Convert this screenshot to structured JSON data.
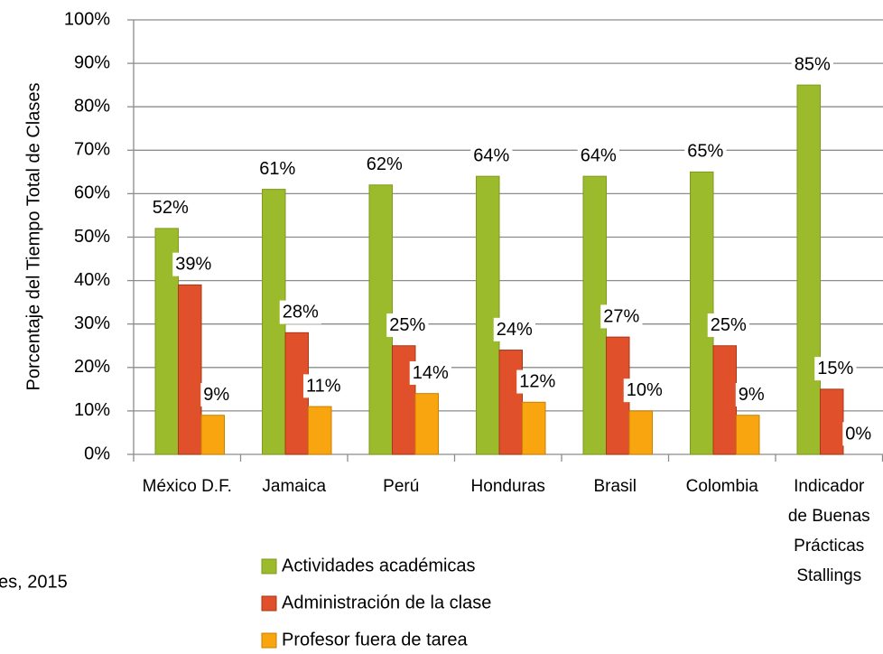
{
  "chart_data": {
    "type": "bar",
    "y_label": "Porcentaje del Tiempo Total de Clases",
    "source": "es, 2015",
    "categories": [
      "México D.F.",
      "Jamaica",
      "Perú",
      "Honduras",
      "Brasil",
      "Colombia",
      "Indicador de Buenas Prácticas Stallings"
    ],
    "series": [
      {
        "name": "Actividades académicas",
        "color": "#9bbb2c",
        "values": [
          52,
          61,
          62,
          64,
          64,
          65,
          85
        ],
        "value_labels": [
          "52%",
          "61%",
          "62%",
          "64%",
          "64%",
          "65%",
          "85%"
        ]
      },
      {
        "name": "Administración de la clase",
        "color": "#e0502a",
        "values": [
          39,
          28,
          25,
          24,
          27,
          25,
          15
        ],
        "value_labels": [
          "39%",
          "28%",
          "25%",
          "24%",
          "27%",
          "25%",
          "15%"
        ]
      },
      {
        "name": "Profesor fuera de tarea",
        "color": "#f9a50f",
        "values": [
          9,
          11,
          14,
          12,
          10,
          9,
          0
        ],
        "value_labels": [
          "9%",
          "11%",
          "14%",
          "12%",
          "10%",
          "9%",
          "0%"
        ]
      }
    ],
    "ylim": [
      0,
      100
    ],
    "yticks": [
      {
        "value": 0,
        "label": "0%"
      },
      {
        "value": 10,
        "label": "10%"
      },
      {
        "value": 20,
        "label": "20%"
      },
      {
        "value": 30,
        "label": "30%"
      },
      {
        "value": 40,
        "label": "40%"
      },
      {
        "value": 50,
        "label": "50%"
      },
      {
        "value": 60,
        "label": "60%"
      },
      {
        "value": 70,
        "label": "70%"
      },
      {
        "value": 80,
        "label": "80%"
      },
      {
        "value": 90,
        "label": "90%"
      },
      {
        "value": 100,
        "label": "100%"
      }
    ],
    "grid": true
  }
}
